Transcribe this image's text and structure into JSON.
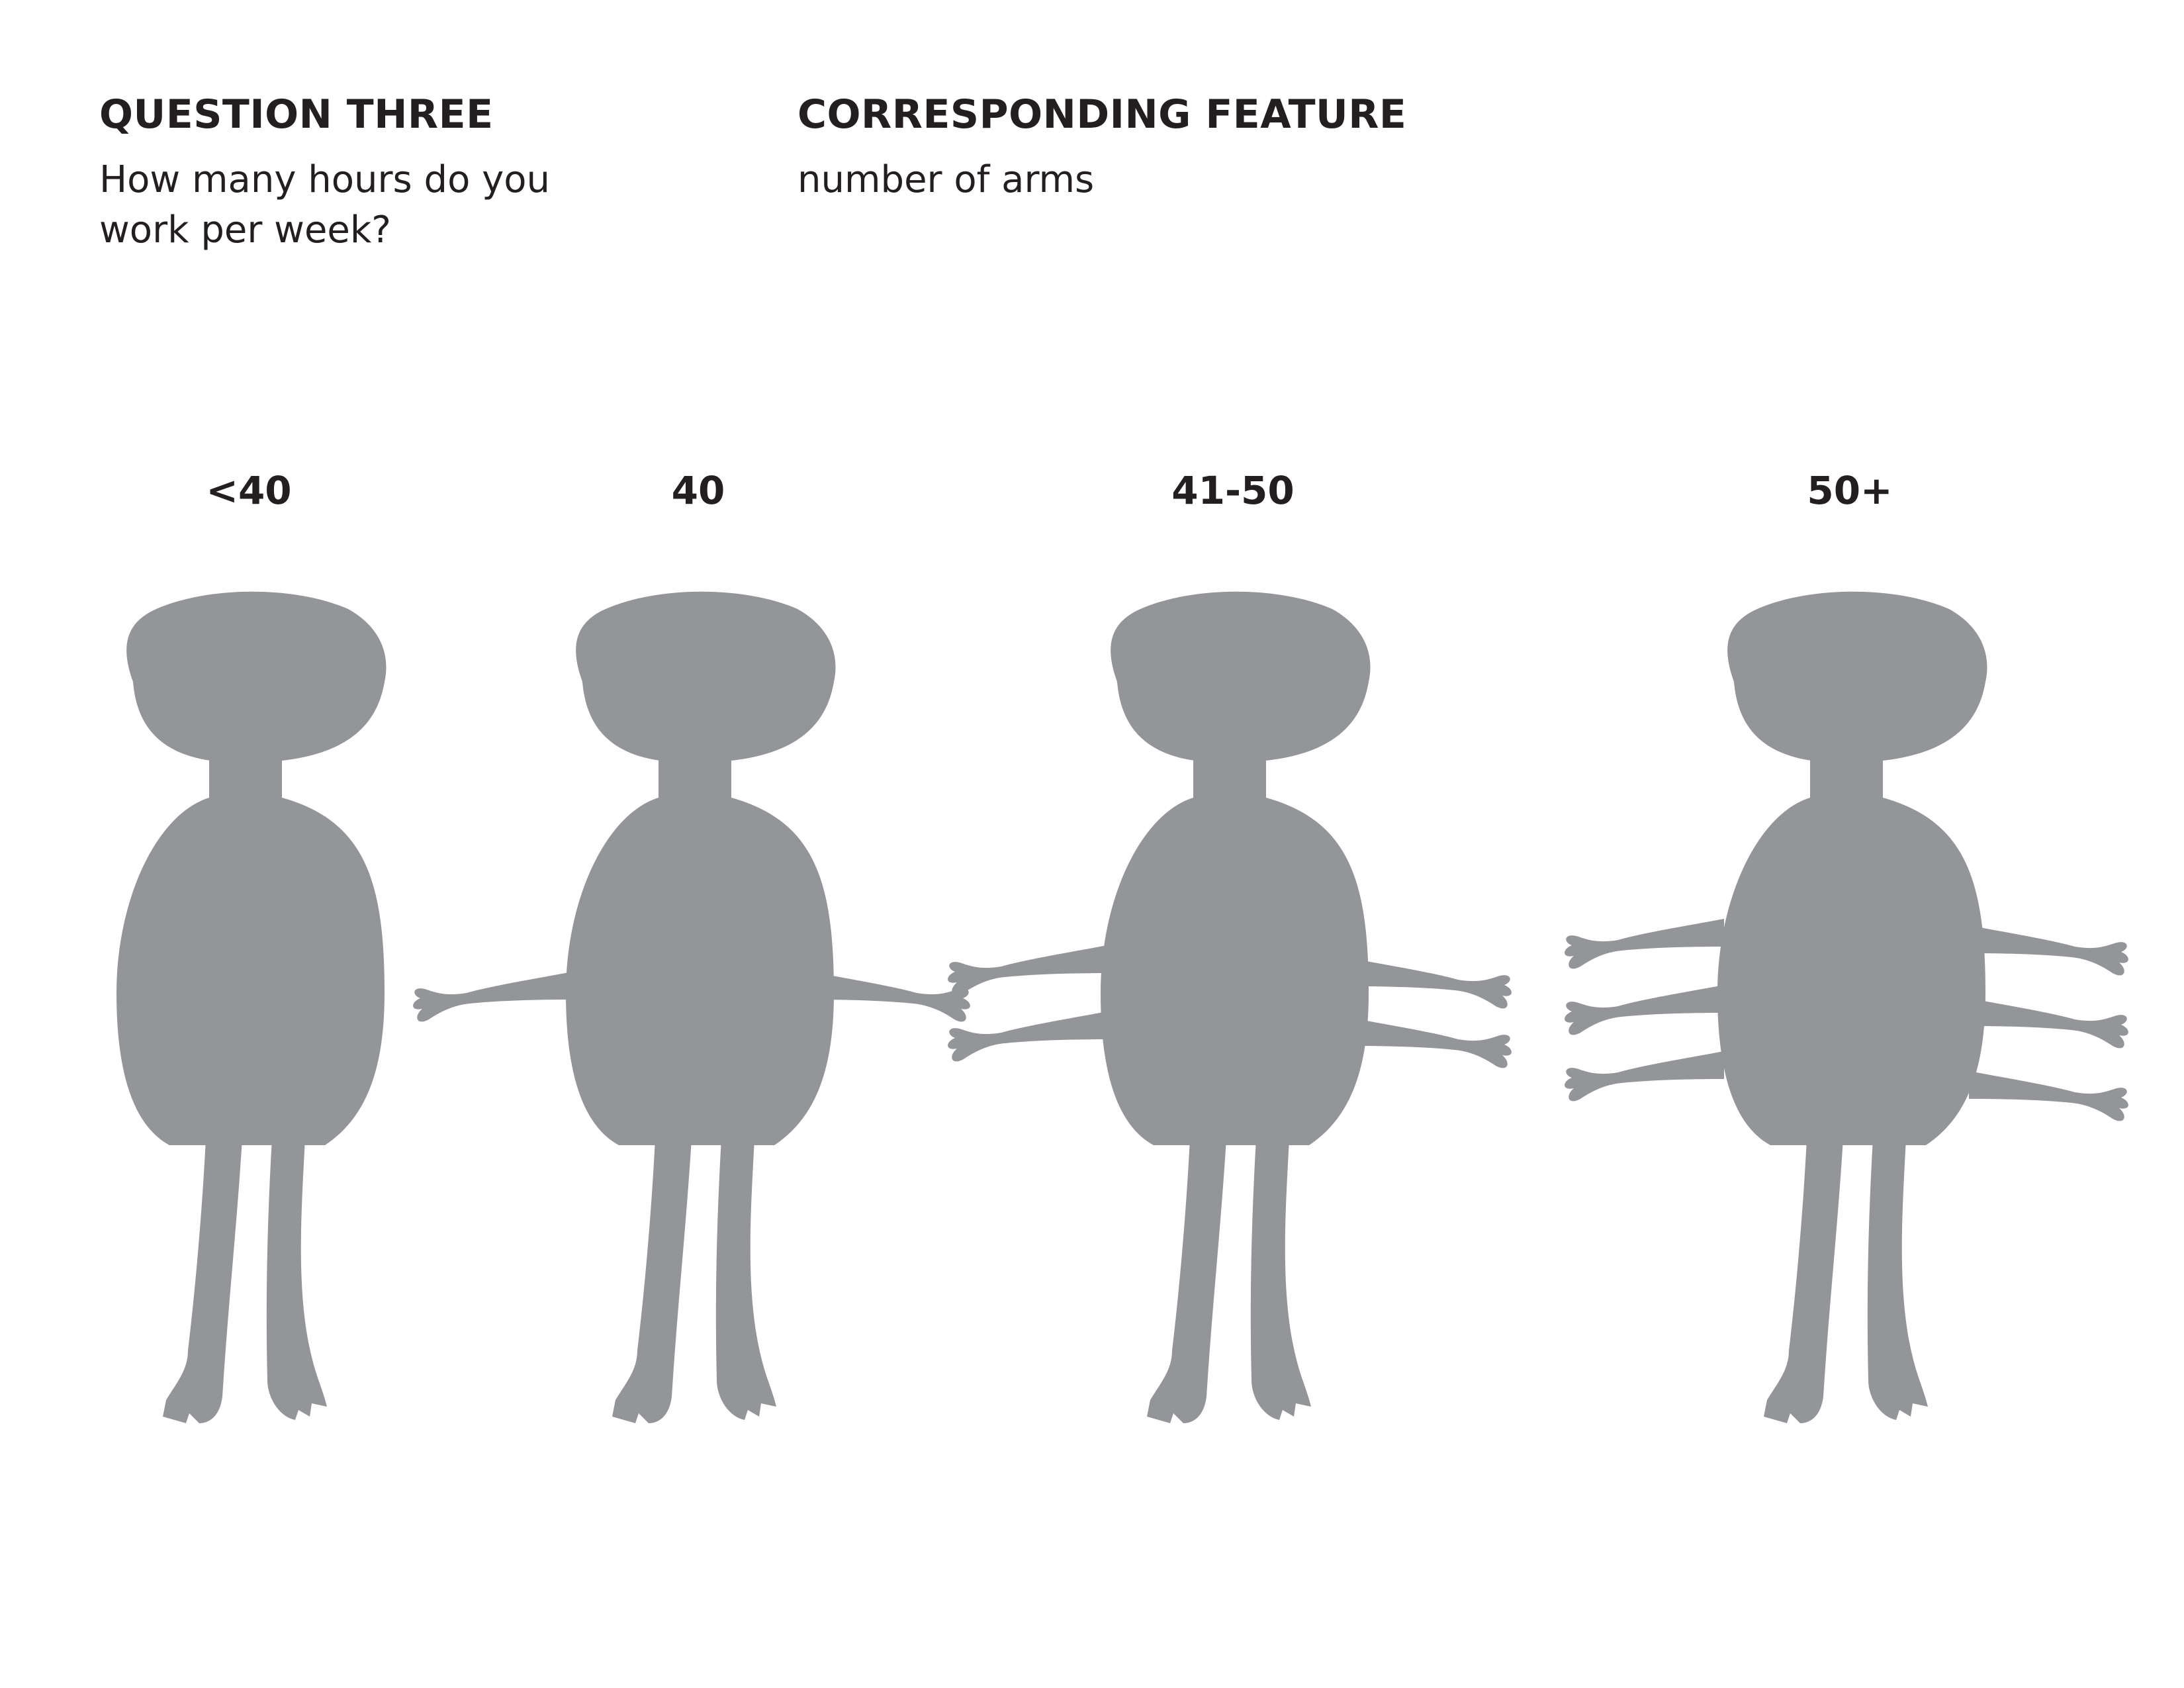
{
  "question": {
    "heading": "QUESTION THREE",
    "text": "How many hours do you work per week?"
  },
  "feature": {
    "heading": "CORRESPONDING FEATURE",
    "text": "number of arms"
  },
  "figure_color": "#939598",
  "categories": [
    {
      "label": "<40",
      "arms": 0
    },
    {
      "label": "40",
      "arms": 2
    },
    {
      "label": "41-50",
      "arms": 4
    },
    {
      "label": "50+",
      "arms": 6
    }
  ]
}
